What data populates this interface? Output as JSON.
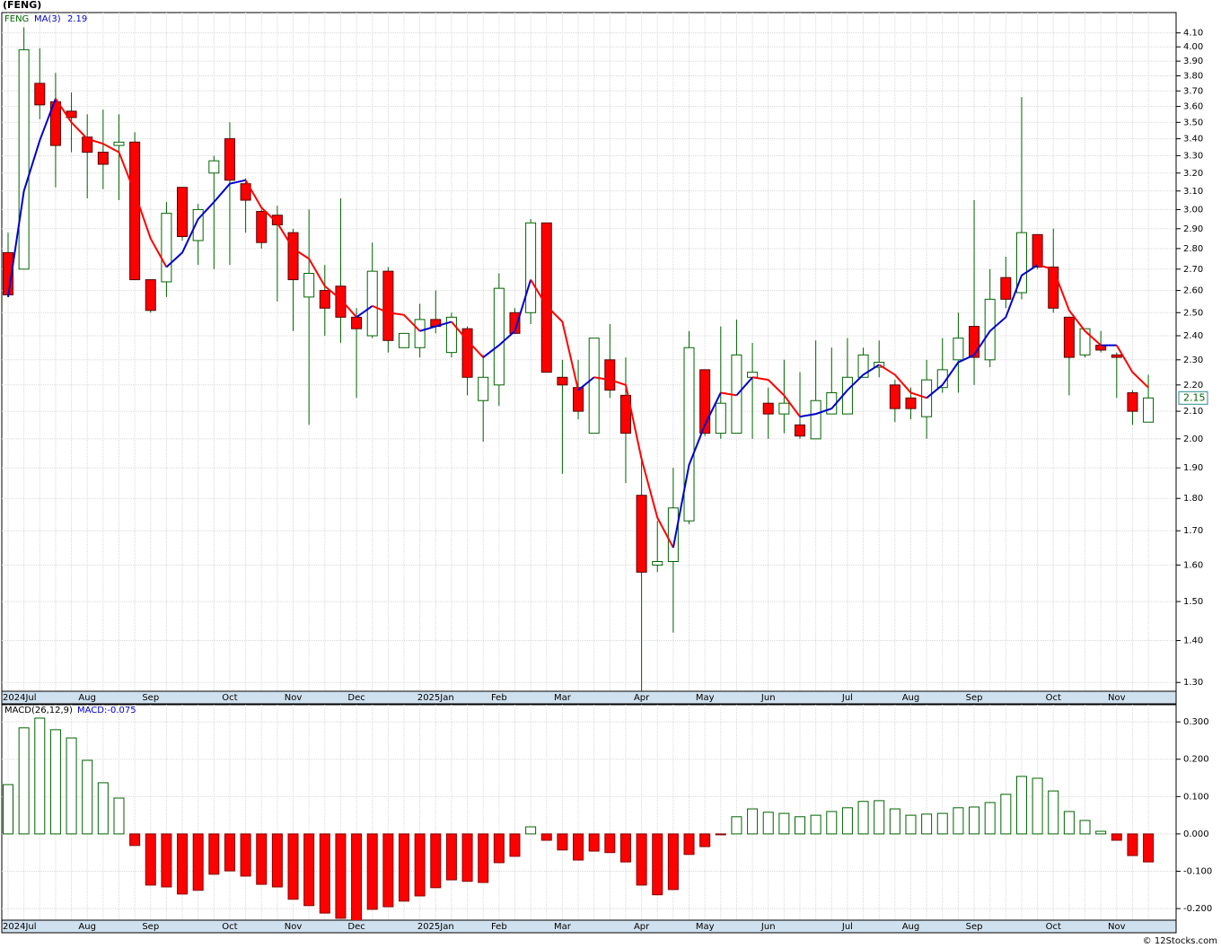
{
  "chart_data": [
    {
      "type": "candlestick",
      "title": "(FENG)",
      "ticker": "FENG",
      "categories": [
        "2024Jul",
        null,
        null,
        null,
        null,
        "Aug",
        null,
        null,
        null,
        "Sep",
        null,
        null,
        null,
        null,
        "Oct",
        null,
        null,
        null,
        "Nov",
        null,
        null,
        null,
        "Dec",
        null,
        null,
        null,
        null,
        "2025Jan",
        null,
        null,
        null,
        "Feb",
        null,
        null,
        null,
        "Mar",
        null,
        null,
        null,
        null,
        "Apr",
        null,
        null,
        null,
        "May",
        null,
        null,
        null,
        "Jun",
        null,
        null,
        null,
        null,
        "Jul",
        null,
        null,
        null,
        "Aug",
        null,
        null,
        null,
        "Sep",
        null,
        null,
        null,
        null,
        "Oct",
        null,
        null,
        null,
        "Nov",
        null,
        null
      ],
      "open": [
        2.78,
        2.7,
        3.75,
        3.63,
        3.57,
        3.41,
        3.32,
        3.36,
        3.38,
        2.65,
        2.64,
        3.12,
        2.84,
        3.2,
        3.4,
        3.14,
        2.99,
        2.97,
        2.88,
        2.57,
        2.6,
        2.62,
        2.48,
        2.4,
        2.69,
        2.35,
        2.35,
        2.47,
        2.33,
        2.43,
        2.14,
        2.2,
        2.5,
        2.5,
        2.93,
        2.23,
        2.19,
        2.02,
        2.3,
        2.16,
        1.81,
        1.6,
        1.61,
        1.73,
        2.26,
        2.02,
        2.02,
        2.23,
        2.13,
        2.09,
        2.05,
        2.0,
        2.09,
        2.09,
        2.23,
        2.27,
        2.2,
        2.15,
        2.08,
        2.19,
        2.3,
        2.44,
        2.3,
        2.66,
        2.59,
        2.87,
        2.71,
        2.48,
        2.32,
        2.36,
        2.32,
        2.17,
        2.06
      ],
      "high": [
        2.88,
        4.14,
        3.99,
        3.82,
        3.69,
        3.55,
        3.58,
        3.55,
        3.44,
        2.65,
        3.04,
        3.12,
        3.03,
        3.3,
        3.5,
        3.17,
        3.0,
        3.02,
        2.9,
        3.0,
        2.72,
        3.06,
        2.52,
        2.83,
        2.71,
        2.41,
        2.54,
        2.6,
        2.5,
        2.44,
        2.32,
        2.68,
        2.52,
        2.95,
        2.93,
        2.3,
        2.3,
        2.39,
        2.45,
        2.31,
        1.94,
        1.73,
        1.9,
        2.42,
        2.26,
        2.44,
        2.47,
        2.37,
        2.19,
        2.3,
        2.25,
        2.38,
        2.35,
        2.39,
        2.35,
        2.38,
        2.22,
        2.19,
        2.3,
        2.39,
        2.5,
        3.05,
        2.7,
        2.76,
        3.66,
        2.87,
        2.9,
        2.48,
        2.43,
        2.42,
        2.33,
        2.18,
        2.24
      ],
      "low": [
        2.57,
        2.7,
        3.52,
        3.12,
        3.32,
        3.06,
        3.11,
        3.05,
        2.65,
        2.5,
        2.57,
        2.84,
        2.72,
        2.7,
        2.72,
        2.88,
        2.8,
        2.55,
        2.42,
        2.05,
        2.4,
        2.37,
        2.15,
        2.39,
        2.33,
        2.35,
        2.31,
        2.41,
        2.31,
        2.16,
        1.99,
        2.12,
        2.41,
        2.45,
        2.25,
        1.88,
        2.07,
        2.02,
        2.15,
        1.85,
        1.28,
        1.58,
        1.42,
        1.72,
        2.01,
        2.0,
        2.02,
        2.0,
        2.0,
        2.02,
        2.0,
        2.0,
        2.09,
        2.09,
        2.23,
        2.23,
        2.06,
        2.07,
        2.0,
        2.17,
        2.17,
        2.2,
        2.27,
        2.52,
        2.56,
        2.7,
        2.5,
        2.16,
        2.31,
        2.33,
        2.15,
        2.05,
        2.06
      ],
      "close": [
        2.58,
        3.98,
        3.61,
        3.36,
        3.53,
        3.32,
        3.25,
        3.38,
        2.65,
        2.51,
        2.98,
        2.86,
        3.0,
        3.27,
        3.16,
        3.05,
        2.83,
        2.92,
        2.65,
        2.68,
        2.52,
        2.48,
        2.43,
        2.69,
        2.38,
        2.41,
        2.47,
        2.44,
        2.48,
        2.23,
        2.23,
        2.61,
        2.41,
        2.93,
        2.25,
        2.2,
        2.1,
        2.39,
        2.18,
        2.02,
        1.58,
        1.61,
        1.77,
        2.35,
        2.02,
        2.13,
        2.32,
        2.25,
        2.09,
        2.13,
        2.01,
        2.14,
        2.17,
        2.23,
        2.32,
        2.29,
        2.11,
        2.11,
        2.22,
        2.26,
        2.39,
        2.31,
        2.56,
        2.56,
        2.88,
        2.71,
        2.52,
        2.31,
        2.43,
        2.34,
        2.31,
        2.1,
        2.15
      ],
      "last_label": "2.15",
      "up_color": "#006400",
      "down_color": "#ff0000",
      "ma": {
        "name": "MA(3)",
        "value_label": "2.19",
        "up_color": "#0000cc",
        "down_color": "#ff0000",
        "values": [
          2.57,
          3.1,
          3.39,
          3.65,
          3.5,
          3.4,
          3.37,
          3.32,
          3.09,
          2.85,
          2.71,
          2.78,
          2.95,
          3.04,
          3.14,
          3.16,
          3.01,
          2.93,
          2.8,
          2.75,
          2.62,
          2.56,
          2.48,
          2.53,
          2.5,
          2.49,
          2.42,
          2.44,
          2.46,
          2.38,
          2.31,
          2.36,
          2.42,
          2.65,
          2.53,
          2.46,
          2.18,
          2.23,
          2.22,
          2.2,
          1.93,
          1.74,
          1.65,
          1.91,
          2.05,
          2.17,
          2.16,
          2.23,
          2.22,
          2.16,
          2.08,
          2.09,
          2.11,
          2.18,
          2.24,
          2.28,
          2.24,
          2.17,
          2.15,
          2.2,
          2.29,
          2.32,
          2.42,
          2.48,
          2.67,
          2.72,
          2.7,
          2.51,
          2.42,
          2.36,
          2.36,
          2.25,
          2.19
        ]
      },
      "log_scale": true,
      "grid": true,
      "ylim": [
        1.28,
        4.25
      ],
      "yticks": [
        {
          "value": 1.3,
          "label": "1.30"
        },
        {
          "value": 1.4,
          "label": "1.40"
        },
        {
          "value": 1.5,
          "label": "1.50"
        },
        {
          "value": 1.6,
          "label": "1.60"
        },
        {
          "value": 1.7,
          "label": "1.70"
        },
        {
          "value": 1.8,
          "label": "1.80"
        },
        {
          "value": 1.9,
          "label": "1.90"
        },
        {
          "value": 2.0,
          "label": "2.00"
        },
        {
          "value": 2.1,
          "label": "2.10"
        },
        {
          "value": 2.2,
          "label": "2.20"
        },
        {
          "value": 2.3,
          "label": "2.30"
        },
        {
          "value": 2.4,
          "label": "2.40"
        },
        {
          "value": 2.5,
          "label": "2.50"
        },
        {
          "value": 2.6,
          "label": "2.60"
        },
        {
          "value": 2.7,
          "label": "2.70"
        },
        {
          "value": 2.8,
          "label": "2.80"
        },
        {
          "value": 2.9,
          "label": "2.90"
        },
        {
          "value": 3.0,
          "label": "3.00"
        },
        {
          "value": 3.1,
          "label": "3.10"
        },
        {
          "value": 3.2,
          "label": "3.20"
        },
        {
          "value": 3.3,
          "label": "3.30"
        },
        {
          "value": 3.4,
          "label": "3.40"
        },
        {
          "value": 3.5,
          "label": "3.50"
        },
        {
          "value": 3.6,
          "label": "3.60"
        },
        {
          "value": 3.7,
          "label": "3.70"
        },
        {
          "value": 3.8,
          "label": "3.80"
        },
        {
          "value": 3.9,
          "label": "3.90"
        },
        {
          "value": 4.0,
          "label": "4.00"
        },
        {
          "value": 4.1,
          "label": "4.10"
        }
      ]
    },
    {
      "type": "bar",
      "title": "MACD(26,12,9)",
      "value_label": "MACD:-0.075",
      "up_color": "#006400",
      "down_color": "#ff0000",
      "grid": true,
      "values": [
        0.132,
        0.284,
        0.31,
        0.279,
        0.257,
        0.197,
        0.137,
        0.096,
        -0.031,
        -0.137,
        -0.142,
        -0.161,
        -0.151,
        -0.108,
        -0.099,
        -0.113,
        -0.135,
        -0.142,
        -0.175,
        -0.192,
        -0.212,
        -0.226,
        -0.235,
        -0.202,
        -0.195,
        -0.18,
        -0.166,
        -0.144,
        -0.123,
        -0.127,
        -0.13,
        -0.077,
        -0.06,
        0.019,
        -0.017,
        -0.043,
        -0.07,
        -0.046,
        -0.05,
        -0.075,
        -0.137,
        -0.163,
        -0.149,
        -0.055,
        -0.034,
        -0.002,
        0.046,
        0.067,
        0.058,
        0.055,
        0.046,
        0.05,
        0.06,
        0.07,
        0.087,
        0.089,
        0.067,
        0.05,
        0.053,
        0.055,
        0.07,
        0.072,
        0.084,
        0.106,
        0.154,
        0.149,
        0.115,
        0.06,
        0.036,
        0.007,
        -0.017,
        -0.058,
        -0.075
      ],
      "ylim": [
        -0.231,
        0.346
      ],
      "yticks": [
        {
          "value": -0.2,
          "label": "-0.200"
        },
        {
          "value": -0.1,
          "label": "-0.100"
        },
        {
          "value": 0,
          "label": "0.000"
        },
        {
          "value": 0.1,
          "label": "0.100"
        },
        {
          "value": 0.2,
          "label": "0.200"
        },
        {
          "value": 0.3,
          "label": "0.300"
        }
      ]
    }
  ],
  "footer": "© 12Stocks.com"
}
